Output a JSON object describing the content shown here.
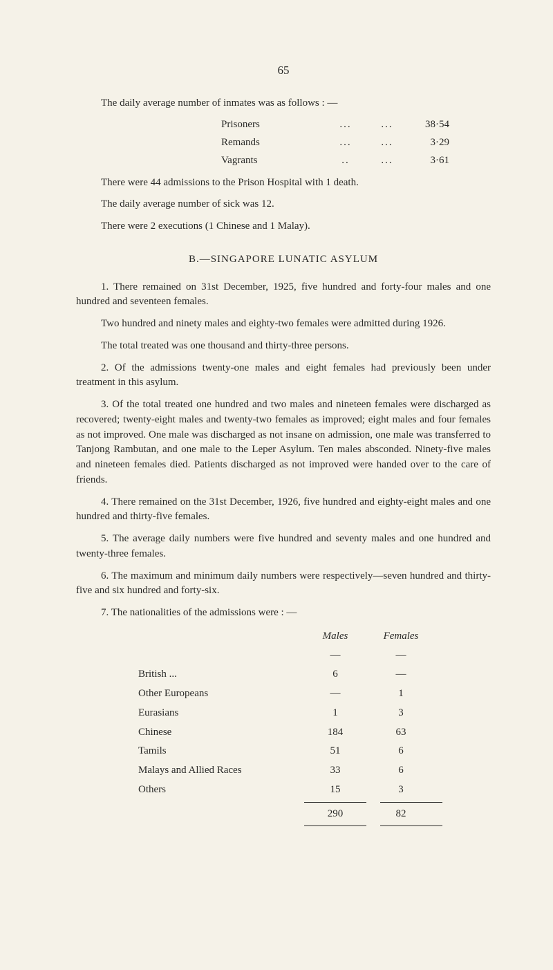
{
  "page_number": "65",
  "intro_line": "The daily average number of inmates was as follows : —",
  "inmates": [
    {
      "label": "Prisoners",
      "value": "38·54"
    },
    {
      "label": "Remands",
      "value": "3·29"
    },
    {
      "label": "Vagrants",
      "value": "3·61"
    }
  ],
  "after_inmates": [
    "There were 44 admissions to the Prison Hospital with 1 death.",
    "The daily average number of sick was 12.",
    "There were 2 executions (1 Chinese and 1 Malay)."
  ],
  "section_head": "B.—SINGAPORE LUNATIC ASYLUM",
  "body_paras": [
    "1. There remained on 31st December, 1925, five hundred and forty-four males and one hundred and seventeen females.",
    "Two hundred and ninety males and eighty-two females were admitted during 1926.",
    "The total treated was one thousand and thirty-three persons.",
    "2. Of the admissions twenty-one males and eight females had previously been under treatment in this asylum.",
    "3. Of the total treated one hundred and two males and nineteen females were discharged as recovered; twenty-eight males and twenty-two females as improved; eight males and four females as not improved. One male was discharged as not insane on admission, one male was transferred to Tanjong Rambutan, and one male to the Leper Asylum. Ten males absconded. Ninety-five males and nineteen females died. Patients discharged as not improved were handed over to the care of friends.",
    "4. There remained on the 31st December, 1926, five hundred and eighty-eight males and one hundred and thirty-five females.",
    "5. The average daily numbers were five hundred and seventy males and one hundred and twenty-three females.",
    "6. The maximum and minimum daily numbers were respectively—seven hundred and thirty-five and six hundred and forty-six.",
    "7. The nationalities of the admissions were : —"
  ],
  "nat_headers": {
    "males": "Males",
    "females": "Females"
  },
  "nat_rows": [
    {
      "label": "British ...",
      "males": "6",
      "females": "—"
    },
    {
      "label": "Other Europeans",
      "males": "—",
      "females": "1"
    },
    {
      "label": "Eurasians",
      "males": "1",
      "females": "3"
    },
    {
      "label": "Chinese",
      "males": "184",
      "females": "63"
    },
    {
      "label": "Tamils",
      "males": "51",
      "females": "6"
    },
    {
      "label": "Malays and Allied Races",
      "males": "33",
      "females": "6"
    },
    {
      "label": "Others",
      "males": "15",
      "females": "3"
    }
  ],
  "nat_totals": {
    "males": "290",
    "females": "82"
  },
  "colors": {
    "background": "#f5f2e8",
    "text": "#2a2a28"
  }
}
